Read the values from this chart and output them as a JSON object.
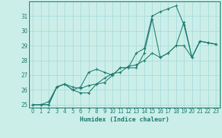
{
  "xlabel": "Humidex (Indice chaleur)",
  "bg_color": "#cceee8",
  "grid_color": "#aadddd",
  "line_color": "#1a7a6e",
  "marker": "+",
  "xlim": [
    -0.5,
    23.5
  ],
  "ylim": [
    24.8,
    32.0
  ],
  "xticks": [
    0,
    1,
    2,
    3,
    4,
    5,
    6,
    7,
    8,
    9,
    10,
    11,
    12,
    13,
    14,
    15,
    16,
    17,
    18,
    19,
    20,
    21,
    22,
    23
  ],
  "yticks": [
    25,
    26,
    27,
    28,
    29,
    30,
    31
  ],
  "series": [
    [
      25.0,
      25.0,
      25.0,
      26.2,
      26.4,
      26.0,
      25.8,
      25.8,
      26.4,
      26.5,
      27.0,
      27.5,
      27.5,
      27.5,
      28.5,
      30.8,
      28.2,
      28.5,
      29.0,
      30.6,
      28.2,
      29.3,
      29.2,
      29.1
    ],
    [
      25.0,
      25.0,
      25.0,
      26.2,
      26.4,
      26.0,
      26.2,
      27.2,
      27.4,
      27.2,
      27.0,
      27.5,
      27.5,
      28.5,
      28.8,
      31.0,
      31.3,
      31.5,
      31.7,
      30.4,
      28.2,
      29.3,
      29.2,
      29.1
    ],
    [
      25.0,
      25.0,
      25.2,
      26.2,
      26.4,
      26.2,
      26.1,
      26.3,
      26.4,
      26.8,
      27.1,
      27.2,
      27.6,
      27.7,
      28.0,
      28.5,
      28.2,
      28.5,
      29.0,
      29.0,
      28.2,
      29.3,
      29.2,
      29.1
    ]
  ]
}
